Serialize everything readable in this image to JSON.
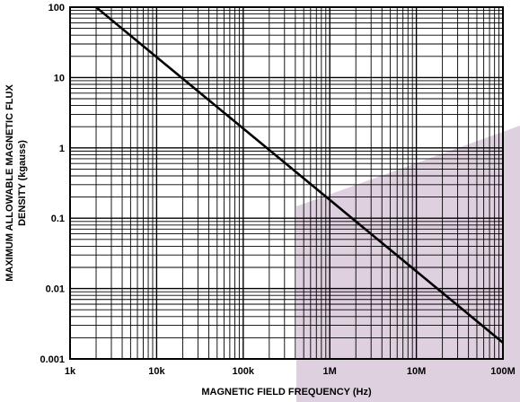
{
  "chart_data": {
    "type": "line",
    "title": "",
    "xlabel": "MAGNETIC FIELD FREQUENCY (Hz)",
    "ylabel_lines": [
      "MAXIMUM ALLOWABLE MAGNETIC FLUX",
      "DENSITY (kgauss)"
    ],
    "x_scale": "log",
    "y_scale": "log",
    "xlim": [
      1000,
      100000000
    ],
    "ylim": [
      0.001,
      100
    ],
    "x_ticks": [
      {
        "value": 1000,
        "label": "1k"
      },
      {
        "value": 10000,
        "label": "10k"
      },
      {
        "value": 100000,
        "label": "100k"
      },
      {
        "value": 1000000,
        "label": "1M"
      },
      {
        "value": 10000000,
        "label": "10M"
      },
      {
        "value": 100000000,
        "label": "100M"
      }
    ],
    "y_ticks": [
      {
        "value": 100,
        "label": "100"
      },
      {
        "value": 10,
        "label": "10"
      },
      {
        "value": 1,
        "label": "1"
      },
      {
        "value": 0.1,
        "label": "0.1"
      },
      {
        "value": 0.01,
        "label": "0.01"
      },
      {
        "value": 0.001,
        "label": "0.001"
      }
    ],
    "grid": true,
    "series": [
      {
        "x": [
          2000,
          100000000
        ],
        "y": [
          100,
          0.0017
        ],
        "color": "#000000"
      }
    ],
    "background_decoration_color": "#d9c8db"
  }
}
